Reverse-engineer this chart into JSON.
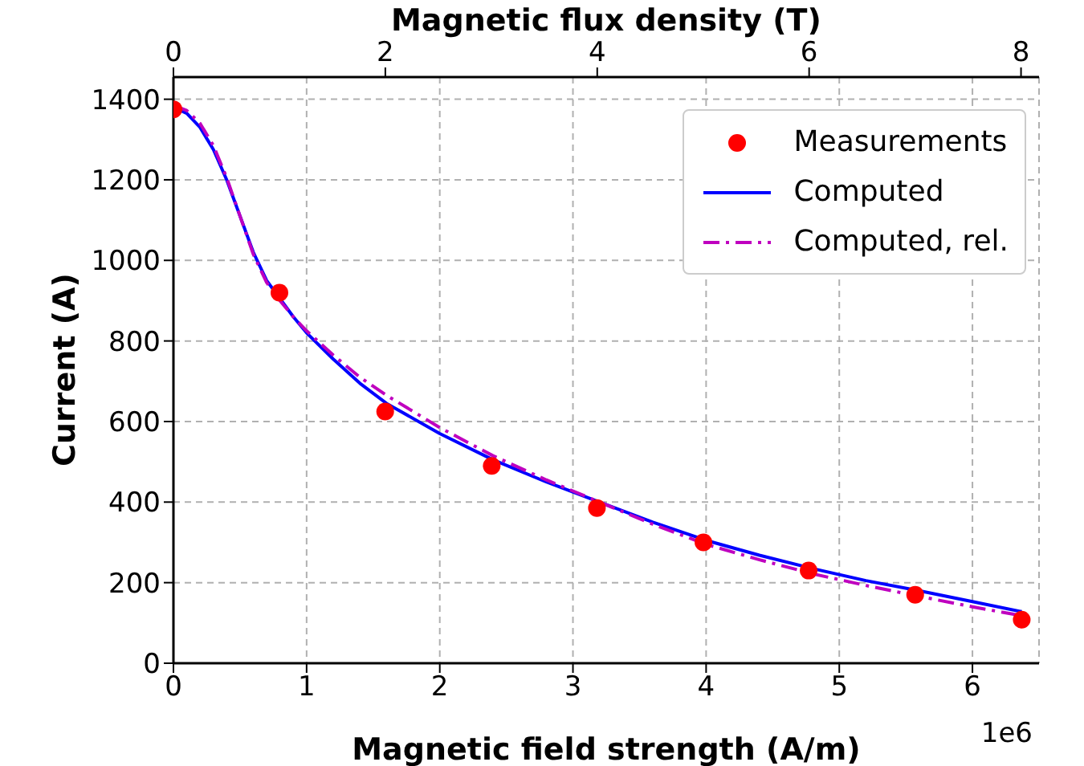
{
  "chart_data": {
    "type": "line",
    "xlabel": "Magnetic field strength (A/m)",
    "ylabel": "Current (A)",
    "x2label": "Magnetic flux density (T)",
    "xlim": [
      0,
      6.5
    ],
    "xticks": [
      0,
      1,
      2,
      3,
      4,
      5,
      6
    ],
    "x2lim": [
      0,
      8.17
    ],
    "x2ticks": [
      0,
      2,
      4,
      6,
      8
    ],
    "ylim": [
      0,
      1455
    ],
    "yticks": [
      0,
      200,
      400,
      600,
      800,
      1000,
      1200,
      1400
    ],
    "grid": true,
    "legend": "top right",
    "annotations": [
      "1e6"
    ],
    "series": [
      {
        "name": "Measurements",
        "type": "scatter",
        "color": "#ff0000",
        "marker": "circle",
        "x": [
          0,
          0.796,
          1.59,
          2.39,
          3.18,
          3.98,
          4.77,
          5.57,
          6.37
        ],
        "values": [
          1375,
          920,
          625,
          490,
          385,
          300,
          230,
          170,
          108
        ]
      },
      {
        "name": "Computed",
        "color": "#0000ff",
        "line_style": "solid",
        "x": [
          0,
          0.1,
          0.2,
          0.3,
          0.4,
          0.5,
          0.6,
          0.7,
          0.8,
          0.9,
          1.0,
          1.2,
          1.4,
          1.6,
          2.0,
          2.4,
          2.8,
          3.2,
          3.6,
          4.0,
          4.4,
          4.8,
          5.2,
          5.6,
          6.0,
          6.37
        ],
        "values": [
          1380,
          1365,
          1330,
          1275,
          1200,
          1110,
          1020,
          950,
          905,
          860,
          820,
          755,
          695,
          645,
          570,
          505,
          450,
          400,
          350,
          305,
          268,
          235,
          205,
          180,
          153,
          128
        ]
      },
      {
        "name": "Computed, rel.",
        "color": "#bf00bf",
        "line_style": "dashdot",
        "x": [
          0,
          0.1,
          0.2,
          0.3,
          0.4,
          0.5,
          0.6,
          0.7,
          0.8,
          0.9,
          1.0,
          1.2,
          1.4,
          1.6,
          2.0,
          2.4,
          2.8,
          3.2,
          3.6,
          4.0,
          4.4,
          4.8,
          5.2,
          5.6,
          6.0,
          6.37
        ],
        "values": [
          1385,
          1372,
          1340,
          1285,
          1205,
          1110,
          1015,
          945,
          900,
          860,
          825,
          765,
          710,
          665,
          585,
          515,
          455,
          400,
          345,
          295,
          257,
          222,
          193,
          166,
          140,
          118
        ]
      }
    ]
  }
}
